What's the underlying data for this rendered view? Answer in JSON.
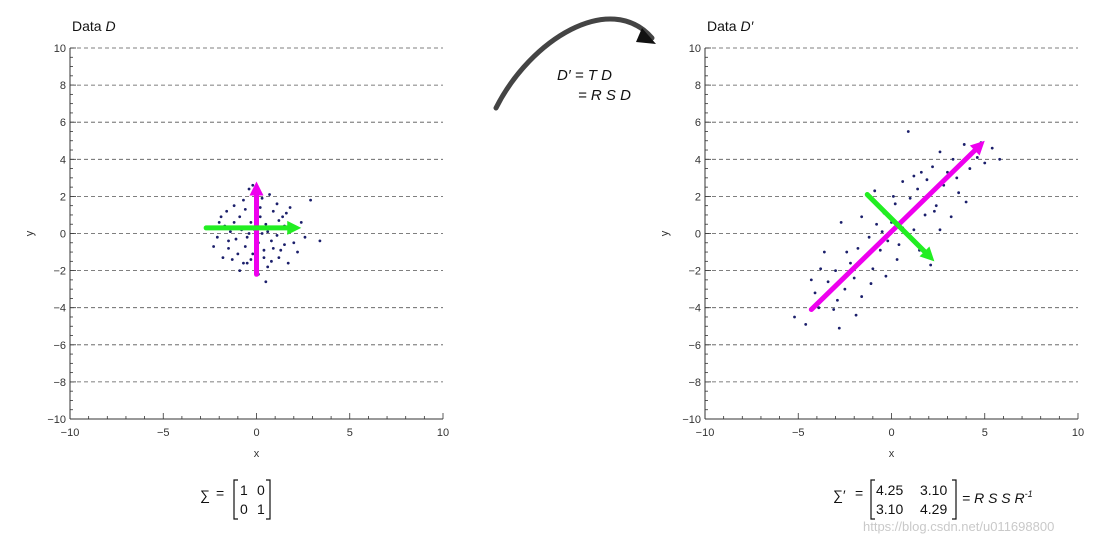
{
  "chart_data": [
    {
      "type": "scatter",
      "title_prefix": "Data ",
      "title_var": "D",
      "xlabel": "x",
      "ylabel": "y",
      "xlim": [
        -10,
        10
      ],
      "ylim": [
        -10,
        10
      ],
      "x_ticks": [
        -10,
        -5,
        0,
        5,
        10
      ],
      "y_ticks": [
        -10,
        -8,
        -6,
        -4,
        -2,
        0,
        2,
        4,
        6,
        8,
        10
      ],
      "x_tick_labels": [
        "−10",
        "−5",
        "0",
        "5",
        "10"
      ],
      "y_tick_labels": [
        "−10",
        "−8",
        "−6",
        "−4",
        "−2",
        "0",
        "2",
        "4",
        "6",
        "8",
        "10"
      ],
      "grid": "horizontal dashed",
      "point_color": "#1b1f6b",
      "points": [
        [
          -1.2,
          1.5
        ],
        [
          -0.4,
          2.4
        ],
        [
          0.3,
          1.9
        ],
        [
          1.1,
          1.6
        ],
        [
          1.6,
          1.1
        ],
        [
          2.9,
          1.8
        ],
        [
          3.4,
          -0.4
        ],
        [
          -2.1,
          -0.2
        ],
        [
          -1.7,
          0.4
        ],
        [
          -1.5,
          -0.8
        ],
        [
          -1.3,
          -1.4
        ],
        [
          -0.9,
          -2.0
        ],
        [
          -0.5,
          -1.6
        ],
        [
          0.1,
          -2.2
        ],
        [
          0.6,
          -1.8
        ],
        [
          1.2,
          -1.3
        ],
        [
          1.5,
          -0.6
        ],
        [
          1.9,
          0.2
        ],
        [
          1.4,
          0.9
        ],
        [
          0.9,
          1.2
        ],
        [
          0.2,
          0.9
        ],
        [
          -0.3,
          0.6
        ],
        [
          -0.8,
          0.2
        ],
        [
          -1.1,
          -0.3
        ],
        [
          -0.6,
          -0.7
        ],
        [
          -0.2,
          -1.1
        ],
        [
          0.4,
          -0.9
        ],
        [
          0.8,
          -0.4
        ],
        [
          1.0,
          0.3
        ],
        [
          0.5,
          0.5
        ],
        [
          -0.1,
          0.2
        ],
        [
          -0.5,
          -0.2
        ],
        [
          0.1,
          -0.5
        ],
        [
          0.6,
          0.1
        ],
        [
          -1.9,
          0.9
        ],
        [
          -2.3,
          -0.7
        ],
        [
          2.2,
          -1.0
        ],
        [
          2.4,
          0.6
        ],
        [
          -0.7,
          1.8
        ],
        [
          0.7,
          2.1
        ],
        [
          -1.0,
          -1.1
        ],
        [
          1.3,
          -0.9
        ],
        [
          -1.6,
          1.2
        ],
        [
          1.7,
          -1.6
        ],
        [
          -0.3,
          -1.4
        ],
        [
          0.2,
          1.4
        ],
        [
          -1.4,
          0.1
        ],
        [
          1.1,
          -0.1
        ],
        [
          -0.9,
          0.9
        ],
        [
          0.9,
          -0.8
        ],
        [
          -0.2,
          2.6
        ],
        [
          0.5,
          -2.6
        ],
        [
          -1.8,
          -1.3
        ],
        [
          1.8,
          1.4
        ],
        [
          -2.6,
          0.3
        ],
        [
          2.6,
          -0.2
        ],
        [
          -0.4,
          0.0
        ],
        [
          0.3,
          0.0
        ],
        [
          0.0,
          0.7
        ],
        [
          0.0,
          -0.8
        ],
        [
          -1.2,
          0.6
        ],
        [
          1.2,
          0.7
        ],
        [
          -0.7,
          -1.6
        ],
        [
          0.8,
          -1.5
        ],
        [
          -1.5,
          -0.4
        ],
        [
          1.5,
          0.4
        ],
        [
          -0.6,
          1.3
        ],
        [
          0.4,
          -1.3
        ],
        [
          -2.0,
          0.6
        ],
        [
          2.0,
          -0.5
        ]
      ],
      "arrows": [
        {
          "name": "major-axis",
          "color": "#ee00ee",
          "from": [
            0,
            -2.2
          ],
          "to": [
            0,
            2.8
          ]
        },
        {
          "name": "minor-axis",
          "color": "#22ee22",
          "from": [
            -2.7,
            0.3
          ],
          "to": [
            2.4,
            0.3
          ]
        }
      ],
      "cov_label": "∑",
      "cov_matrix": [
        [
          "1",
          "0"
        ],
        [
          "0",
          "1"
        ]
      ]
    },
    {
      "type": "scatter",
      "title_prefix": "Data ",
      "title_var": "D′",
      "xlabel": "x",
      "ylabel": "y",
      "xlim": [
        -10,
        10
      ],
      "ylim": [
        -10,
        10
      ],
      "x_ticks": [
        -10,
        -5,
        0,
        5,
        10
      ],
      "y_ticks": [
        -10,
        -8,
        -6,
        -4,
        -2,
        0,
        2,
        4,
        6,
        8,
        10
      ],
      "x_tick_labels": [
        "−10",
        "−5",
        "0",
        "5",
        "10"
      ],
      "y_tick_labels": [
        "−10",
        "−8",
        "−6",
        "−4",
        "−2",
        "0",
        "2",
        "4",
        "6",
        "8",
        "10"
      ],
      "grid": "horizontal dashed",
      "point_color": "#1b1f6b",
      "points": [
        [
          -5.2,
          -4.5
        ],
        [
          -4.6,
          -4.9
        ],
        [
          -4.1,
          -3.2
        ],
        [
          -3.8,
          -1.9
        ],
        [
          -3.4,
          -2.6
        ],
        [
          -3.1,
          -4.1
        ],
        [
          -2.8,
          -5.1
        ],
        [
          -2.5,
          -3.0
        ],
        [
          -2.2,
          -1.6
        ],
        [
          -2.0,
          -2.4
        ],
        [
          -1.8,
          -0.8
        ],
        [
          -1.6,
          -3.4
        ],
        [
          -1.4,
          -1.2
        ],
        [
          -1.2,
          -0.2
        ],
        [
          -1.0,
          -1.9
        ],
        [
          -0.8,
          0.5
        ],
        [
          -0.6,
          -0.9
        ],
        [
          -0.4,
          1.1
        ],
        [
          -0.2,
          -0.4
        ],
        [
          0.0,
          0.6
        ],
        [
          0.2,
          1.6
        ],
        [
          0.4,
          -0.6
        ],
        [
          0.6,
          2.8
        ],
        [
          0.8,
          0.9
        ],
        [
          1.0,
          1.9
        ],
        [
          1.2,
          0.2
        ],
        [
          1.4,
          2.4
        ],
        [
          1.6,
          3.3
        ],
        [
          1.8,
          1.0
        ],
        [
          2.0,
          2.1
        ],
        [
          2.2,
          3.6
        ],
        [
          2.4,
          1.5
        ],
        [
          2.6,
          4.4
        ],
        [
          2.8,
          2.6
        ],
        [
          3.0,
          3.3
        ],
        [
          3.3,
          4.0
        ],
        [
          3.6,
          2.2
        ],
        [
          3.9,
          4.8
        ],
        [
          4.2,
          3.5
        ],
        [
          4.6,
          4.1
        ],
        [
          5.0,
          3.8
        ],
        [
          5.4,
          4.6
        ],
        [
          5.8,
          4.0
        ],
        [
          0.9,
          5.5
        ],
        [
          -2.7,
          0.6
        ],
        [
          -3.6,
          -1.0
        ],
        [
          -1.9,
          -4.4
        ],
        [
          2.1,
          -1.7
        ],
        [
          1.5,
          -0.9
        ],
        [
          3.2,
          0.9
        ],
        [
          -0.9,
          2.3
        ],
        [
          -2.4,
          -1.0
        ],
        [
          0.3,
          -1.4
        ],
        [
          -1.6,
          0.9
        ],
        [
          1.2,
          3.1
        ],
        [
          -3.0,
          -2.0
        ],
        [
          2.6,
          0.2
        ],
        [
          -4.3,
          -2.5
        ],
        [
          4.0,
          1.7
        ],
        [
          -0.3,
          -2.3
        ],
        [
          0.6,
          0.3
        ],
        [
          1.9,
          2.9
        ],
        [
          -1.1,
          -2.7
        ],
        [
          -2.9,
          -3.6
        ],
        [
          3.5,
          3.0
        ],
        [
          4.8,
          4.9
        ],
        [
          -3.9,
          -4.0
        ],
        [
          -0.5,
          0.1
        ],
        [
          0.1,
          2.0
        ],
        [
          2.3,
          1.2
        ]
      ],
      "arrows": [
        {
          "name": "major-axis",
          "color": "#ee00ee",
          "from": [
            -4.3,
            -4.1
          ],
          "to": [
            5.0,
            5.0
          ]
        },
        {
          "name": "minor-axis",
          "color": "#22ee22",
          "from": [
            -1.3,
            2.1
          ],
          "to": [
            2.3,
            -1.5
          ]
        }
      ],
      "cov_label": "∑′",
      "cov_matrix": [
        [
          "4.25",
          "3.10"
        ],
        [
          "3.10",
          "4.29"
        ]
      ],
      "cov_suffix": "= R S S R",
      "cov_suffix_sup": "-1"
    }
  ],
  "transform": {
    "line1": "D′ = T D",
    "line2": "= R S D"
  },
  "watermark": "https://blog.csdn.net/u011698800"
}
